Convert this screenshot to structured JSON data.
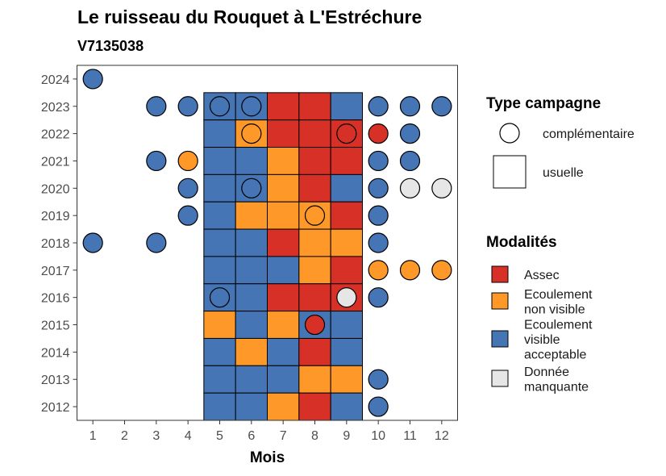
{
  "chart_data": {
    "type": "heatmap",
    "title": "Le ruisseau du Rouquet à L'Estréchure",
    "subtitle": "V7135038",
    "xlabel": "Mois",
    "ylabel": "",
    "x_ticks": [
      1,
      2,
      3,
      4,
      5,
      6,
      7,
      8,
      9,
      10,
      11,
      12
    ],
    "y_ticks": [
      2012,
      2013,
      2014,
      2015,
      2016,
      2017,
      2018,
      2019,
      2020,
      2021,
      2022,
      2023,
      2024
    ],
    "xlim": [
      0.5,
      12.5
    ],
    "ylim": [
      2011.5,
      2024.5
    ],
    "grid": false,
    "legend_position": "right",
    "colors": {
      "Assec": "#d73027",
      "Ecoulement non visible": "#fe9929",
      "Ecoulement visible acceptable": "#4575b4",
      "Donnée manquante": "#e6e6e6"
    },
    "legend": {
      "shape_title": "Type campagne",
      "shapes": [
        {
          "shape": "circle",
          "label": "complémentaire"
        },
        {
          "shape": "square",
          "label": "usuelle"
        }
      ],
      "fill_title": "Modalités",
      "fills": [
        {
          "key": "Assec",
          "lines": [
            "Assec"
          ]
        },
        {
          "key": "Ecoulement non visible",
          "lines": [
            "Ecoulement",
            "non visible"
          ]
        },
        {
          "key": "Ecoulement visible acceptable",
          "lines": [
            "Ecoulement",
            "visible",
            "acceptable"
          ]
        },
        {
          "key": "Donnée manquante",
          "lines": [
            "Donnée",
            "manquante"
          ]
        }
      ]
    },
    "usuelle": [
      {
        "year": 2023,
        "months": [
          "Ecoulement visible acceptable",
          "Ecoulement visible acceptable",
          "Assec",
          "Assec",
          "Ecoulement visible acceptable"
        ]
      },
      {
        "year": 2022,
        "months": [
          "Ecoulement visible acceptable",
          "Ecoulement non visible",
          "Assec",
          "Assec",
          "Assec"
        ]
      },
      {
        "year": 2021,
        "months": [
          "Ecoulement visible acceptable",
          "Ecoulement visible acceptable",
          "Ecoulement non visible",
          "Assec",
          "Assec"
        ]
      },
      {
        "year": 2020,
        "months": [
          "Ecoulement visible acceptable",
          "Ecoulement visible acceptable",
          "Ecoulement non visible",
          "Assec",
          "Ecoulement visible acceptable"
        ]
      },
      {
        "year": 2019,
        "months": [
          "Ecoulement visible acceptable",
          "Ecoulement non visible",
          "Ecoulement non visible",
          "Ecoulement non visible",
          "Assec"
        ]
      },
      {
        "year": 2018,
        "months": [
          "Ecoulement visible acceptable",
          "Ecoulement visible acceptable",
          "Assec",
          "Ecoulement non visible",
          "Ecoulement non visible"
        ]
      },
      {
        "year": 2017,
        "months": [
          "Ecoulement visible acceptable",
          "Ecoulement visible acceptable",
          "Ecoulement visible acceptable",
          "Ecoulement non visible",
          "Assec"
        ]
      },
      {
        "year": 2016,
        "months": [
          "Ecoulement visible acceptable",
          "Ecoulement visible acceptable",
          "Assec",
          "Assec",
          "Assec"
        ]
      },
      {
        "year": 2015,
        "months": [
          "Ecoulement non visible",
          "Ecoulement visible acceptable",
          "Ecoulement non visible",
          "Ecoulement visible acceptable",
          "Ecoulement visible acceptable"
        ]
      },
      {
        "year": 2014,
        "months": [
          "Ecoulement visible acceptable",
          "Ecoulement non visible",
          "Ecoulement visible acceptable",
          "Assec",
          "Ecoulement visible acceptable"
        ]
      },
      {
        "year": 2013,
        "months": [
          "Ecoulement visible acceptable",
          "Ecoulement visible acceptable",
          "Ecoulement visible acceptable",
          "Ecoulement non visible",
          "Ecoulement non visible"
        ]
      },
      {
        "year": 2012,
        "months": [
          "Ecoulement visible acceptable",
          "Ecoulement visible acceptable",
          "Ecoulement non visible",
          "Assec",
          "Ecoulement visible acceptable"
        ]
      }
    ],
    "usuelle_months": [
      5,
      6,
      7,
      8,
      9
    ],
    "complementaire": [
      {
        "year": 2024,
        "month": 1,
        "value": "Ecoulement visible acceptable"
      },
      {
        "year": 2023,
        "month": 3,
        "value": "Ecoulement visible acceptable"
      },
      {
        "year": 2023,
        "month": 4,
        "value": "Ecoulement visible acceptable"
      },
      {
        "year": 2023,
        "month": 5,
        "value": "Ecoulement visible acceptable"
      },
      {
        "year": 2023,
        "month": 6,
        "value": "Ecoulement visible acceptable"
      },
      {
        "year": 2023,
        "month": 10,
        "value": "Ecoulement visible acceptable"
      },
      {
        "year": 2023,
        "month": 11,
        "value": "Ecoulement visible acceptable"
      },
      {
        "year": 2023,
        "month": 12,
        "value": "Ecoulement visible acceptable"
      },
      {
        "year": 2022,
        "month": 6,
        "value": "Ecoulement non visible"
      },
      {
        "year": 2022,
        "month": 9,
        "value": "Assec"
      },
      {
        "year": 2022,
        "month": 10,
        "value": "Assec"
      },
      {
        "year": 2022,
        "month": 11,
        "value": "Ecoulement visible acceptable"
      },
      {
        "year": 2021,
        "month": 3,
        "value": "Ecoulement visible acceptable"
      },
      {
        "year": 2021,
        "month": 4,
        "value": "Ecoulement non visible"
      },
      {
        "year": 2021,
        "month": 10,
        "value": "Ecoulement visible acceptable"
      },
      {
        "year": 2021,
        "month": 11,
        "value": "Ecoulement visible acceptable"
      },
      {
        "year": 2020,
        "month": 4,
        "value": "Ecoulement visible acceptable"
      },
      {
        "year": 2020,
        "month": 6,
        "value": "Ecoulement visible acceptable"
      },
      {
        "year": 2020,
        "month": 10,
        "value": "Ecoulement visible acceptable"
      },
      {
        "year": 2020,
        "month": 11,
        "value": "Donnée manquante"
      },
      {
        "year": 2020,
        "month": 12,
        "value": "Donnée manquante"
      },
      {
        "year": 2019,
        "month": 4,
        "value": "Ecoulement visible acceptable"
      },
      {
        "year": 2019,
        "month": 8,
        "value": "Ecoulement non visible"
      },
      {
        "year": 2019,
        "month": 10,
        "value": "Ecoulement visible acceptable"
      },
      {
        "year": 2018,
        "month": 1,
        "value": "Ecoulement visible acceptable"
      },
      {
        "year": 2018,
        "month": 3,
        "value": "Ecoulement visible acceptable"
      },
      {
        "year": 2018,
        "month": 10,
        "value": "Ecoulement visible acceptable"
      },
      {
        "year": 2017,
        "month": 10,
        "value": "Ecoulement non visible"
      },
      {
        "year": 2017,
        "month": 11,
        "value": "Ecoulement non visible"
      },
      {
        "year": 2017,
        "month": 12,
        "value": "Ecoulement non visible"
      },
      {
        "year": 2016,
        "month": 5,
        "value": "Ecoulement visible acceptable"
      },
      {
        "year": 2016,
        "month": 9,
        "value": "Donnée manquante"
      },
      {
        "year": 2016,
        "month": 10,
        "value": "Ecoulement visible acceptable"
      },
      {
        "year": 2015,
        "month": 8,
        "value": "Assec"
      },
      {
        "year": 2013,
        "month": 10,
        "value": "Ecoulement visible acceptable"
      },
      {
        "year": 2012,
        "month": 10,
        "value": "Ecoulement visible acceptable"
      }
    ]
  }
}
